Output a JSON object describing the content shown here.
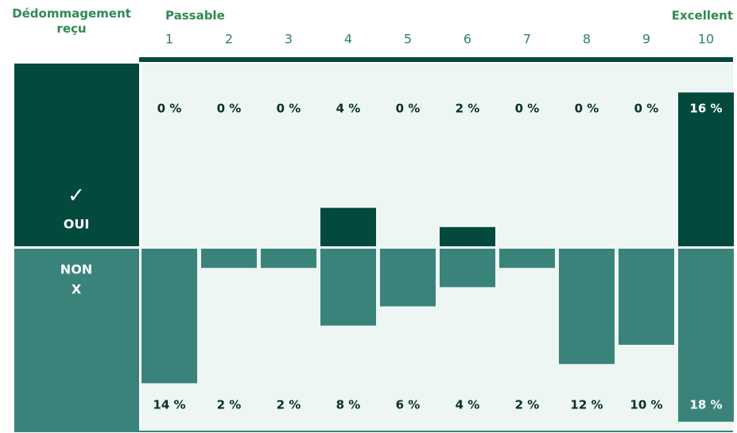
{
  "chart_data": {
    "type": "diverging_bar",
    "row_header": "Dédommagement reçu",
    "low_label": "Passable",
    "high_label": "Excellent",
    "categories": [
      "1",
      "2",
      "3",
      "4",
      "5",
      "6",
      "7",
      "8",
      "9",
      "10"
    ],
    "series": [
      {
        "name": "OUI",
        "symbol": "✓",
        "color": "#03493e",
        "values": [
          0,
          0,
          0,
          4,
          0,
          2,
          0,
          0,
          0,
          16
        ],
        "value_labels": [
          "0 %",
          "0 %",
          "0 %",
          "4 %",
          "0 %",
          "2 %",
          "0 %",
          "0 %",
          "0 %",
          "16 %"
        ]
      },
      {
        "name": "NON",
        "symbol": "X",
        "color": "#3a837b",
        "values": [
          14,
          2,
          2,
          8,
          6,
          4,
          2,
          12,
          10,
          18
        ],
        "value_labels": [
          "14 %",
          "2 %",
          "2 %",
          "8 %",
          "6 %",
          "4 %",
          "2 %",
          "12 %",
          "10 %",
          "18 %"
        ]
      }
    ]
  }
}
